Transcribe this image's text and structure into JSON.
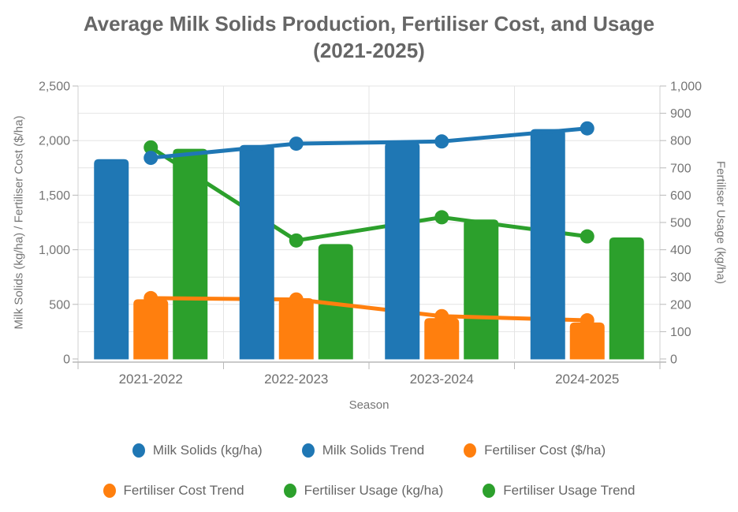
{
  "title": {
    "line1": "Average Milk Solids Production, Fertiliser Cost, and Usage",
    "line2": "(2021-2025)"
  },
  "chart_data": {
    "type": "combo-bar-line",
    "categories": [
      "2021-2022",
      "2022-2023",
      "2023-2024",
      "2024-2025"
    ],
    "x_axis": {
      "title": "Season"
    },
    "left_axis": {
      "title": "Milk Solids (kg/ha) / Fertiliser Cost ($/ha)",
      "min": 0,
      "max": 2500,
      "label_step": 500,
      "grid_step": 250
    },
    "right_axis": {
      "title": "Fertiliser Usage (kg/ha)",
      "min": 0,
      "max": 1000,
      "label_step": 100
    },
    "grid": true,
    "legend_position": "bottom",
    "series": [
      {
        "id": "milk-solids-bars",
        "name": "Milk Solids (kg/ha)",
        "type": "bar",
        "axis": "left",
        "color": "#1F77B4",
        "z": 4,
        "values": [
          1830,
          1960,
          1985,
          2105
        ]
      },
      {
        "id": "milk-solids-trend",
        "name": "Milk Solids Trend",
        "type": "line",
        "axis": "left",
        "color": "#1F77B4",
        "z": 5,
        "values": [
          1842,
          1972,
          1992,
          2112
        ]
      },
      {
        "id": "fertiliser-cost-bars",
        "name": "Fertiliser Cost ($/ha)",
        "type": "bar",
        "axis": "left",
        "color": "#FF7F0E",
        "z": 2,
        "values": [
          546,
          556,
          374,
          334
        ]
      },
      {
        "id": "fertiliser-cost-trend",
        "name": "Fertiliser Cost Trend",
        "type": "line",
        "axis": "left",
        "color": "#FF7F0E",
        "z": 3,
        "values": [
          557,
          545,
          392,
          354
        ]
      },
      {
        "id": "fertiliser-usage-bars",
        "name": "Fertiliser Usage (kg/ha)",
        "type": "bar",
        "axis": "right",
        "color": "#2CA02C",
        "z": 1,
        "values": [
          770,
          421,
          511,
          445
        ]
      },
      {
        "id": "fertiliser-usage-trend",
        "name": "Fertiliser Usage Trend",
        "type": "line",
        "axis": "right",
        "color": "#2CA02C",
        "z": 0,
        "values": [
          775,
          434,
          519,
          449
        ]
      }
    ],
    "legend": {
      "rows": [
        [
          "Milk Solids (kg/ha)",
          "Milk Solids Trend",
          "Fertiliser Cost ($/ha)"
        ],
        [
          "Fertiliser Cost Trend",
          "Fertiliser Usage (kg/ha)",
          "Fertiliser Usage Trend"
        ]
      ]
    }
  }
}
